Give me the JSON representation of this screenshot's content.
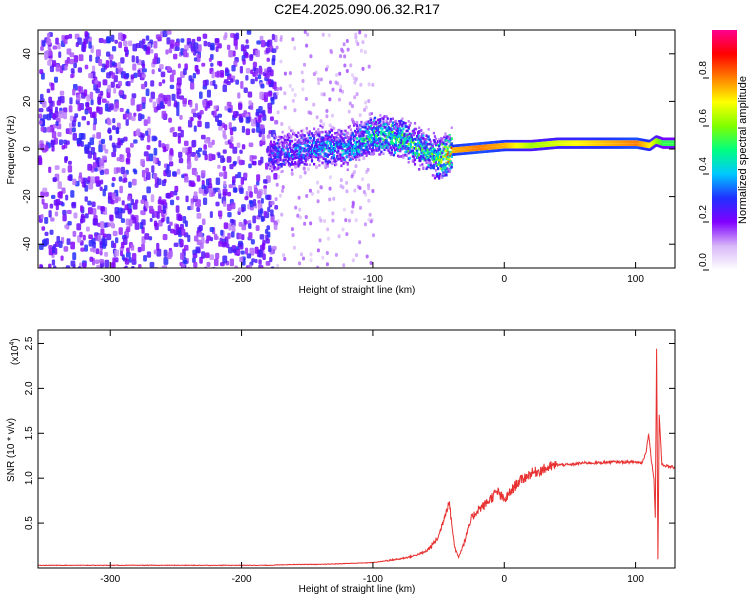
{
  "title": "C2E4.2025.090.06.32.R17",
  "chart_data": [
    {
      "type": "heatmap",
      "title": "C2E4.2025.090.06.32.R17",
      "xlabel": "Height of straight line (km)",
      "ylabel": "Frequency (Hz)",
      "xlim": [
        -355,
        130
      ],
      "ylim": [
        -50,
        50
      ],
      "x_ticks": [
        -300,
        -200,
        -100,
        0,
        100
      ],
      "y_ticks": [
        -40,
        -20,
        0,
        20,
        40
      ],
      "colorbar": {
        "label": "Normalized spectral amplitude",
        "range": [
          0,
          1
        ],
        "ticks": [
          "0.0",
          "0.2",
          "0.4",
          "0.6",
          "0.8"
        ],
        "colors": [
          "#ffffff",
          "#d8b8f8",
          "#8000ff",
          "#2030ff",
          "#00c8ff",
          "#00ff80",
          "#80ff00",
          "#ffff00",
          "#ff8000",
          "#ff0000",
          "#ff0090"
        ]
      },
      "ridge": {
        "x": [
          -180,
          -160,
          -140,
          -120,
          -100,
          -80,
          -60,
          -50,
          -40,
          -20,
          0,
          20,
          40,
          60,
          80,
          100,
          110,
          115,
          120,
          130
        ],
        "freq": [
          -2,
          0,
          2,
          1,
          7,
          5,
          0,
          -4,
          0,
          1,
          2,
          2,
          3,
          3,
          3,
          3,
          2,
          4,
          3,
          3
        ],
        "amplitude": [
          0.3,
          0.35,
          0.4,
          0.4,
          0.5,
          0.55,
          0.5,
          0.6,
          0.85,
          0.9,
          0.85,
          0.7,
          0.75,
          0.8,
          0.85,
          0.9,
          0.8,
          0.7,
          0.6,
          0.6
        ]
      }
    },
    {
      "type": "line",
      "xlabel": "Height of straight line (km)",
      "ylabel": "SNR (10 * v/v)",
      "y_multiplier": "(x10",
      "y_multiplier_exp": "4",
      "y_multiplier_close": ")",
      "xlim": [
        -355,
        130
      ],
      "ylim": [
        0,
        2.65
      ],
      "x_ticks": [
        -300,
        -200,
        -100,
        0,
        100
      ],
      "y_ticks": [
        "0.5",
        "1.0",
        "1.5",
        "2.0",
        "2.5"
      ],
      "color": "#e83030",
      "series": [
        {
          "x": [
            -355,
            -300,
            -250,
            -200,
            -180,
            -160,
            -140,
            -120,
            -100,
            -90,
            -80,
            -70,
            -60,
            -55,
            -50,
            -45,
            -42,
            -40,
            -38,
            -35,
            -30,
            -25,
            -20,
            -15,
            -10,
            -5,
            0,
            5,
            10,
            15,
            20,
            30,
            40,
            50,
            60,
            70,
            80,
            90,
            100,
            105,
            108,
            110,
            112,
            114,
            115,
            116,
            117,
            118,
            120,
            125,
            130
          ],
          "y": [
            0.03,
            0.03,
            0.03,
            0.03,
            0.03,
            0.04,
            0.04,
            0.05,
            0.06,
            0.08,
            0.1,
            0.13,
            0.18,
            0.25,
            0.35,
            0.6,
            0.75,
            0.5,
            0.25,
            0.12,
            0.3,
            0.55,
            0.65,
            0.7,
            0.78,
            0.85,
            0.75,
            0.85,
            0.95,
            1.0,
            1.05,
            1.1,
            1.15,
            1.15,
            1.17,
            1.17,
            1.18,
            1.18,
            1.18,
            1.17,
            1.3,
            1.5,
            1.2,
            1.0,
            0.55,
            2.45,
            0.1,
            1.7,
            1.15,
            1.13,
            1.12
          ]
        }
      ]
    }
  ]
}
